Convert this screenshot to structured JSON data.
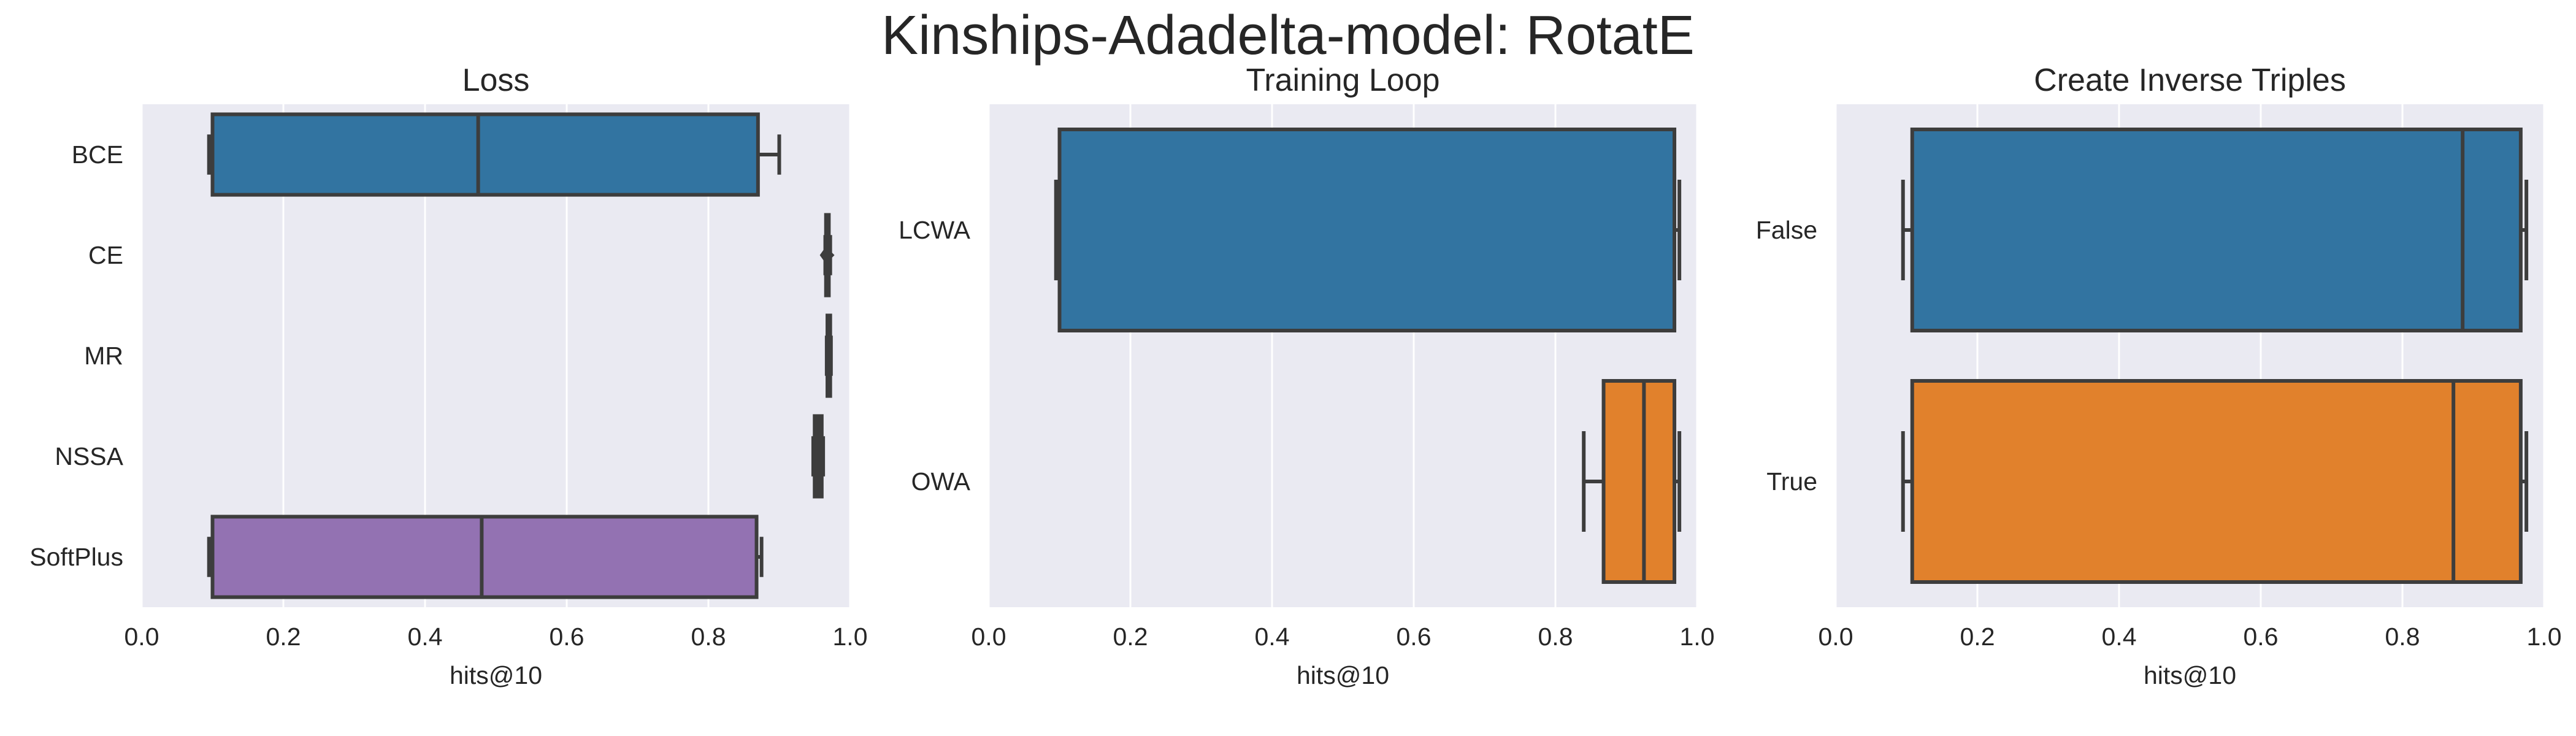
{
  "figure_title": "Kinships-Adadelta-model: RotatE",
  "colors": {
    "background": "#eaeaf2",
    "grid": "#ffffff",
    "edge": "#3d3d3d",
    "blue": "#3274a1",
    "orange": "#e1812c",
    "purple": "#9372b2"
  },
  "chart_data": [
    {
      "type": "box",
      "orientation": "horizontal",
      "title": "Loss",
      "xlabel": "hits@10",
      "xlim": [
        0.0,
        1.0
      ],
      "xticks": [
        "0.0",
        "0.2",
        "0.4",
        "0.6",
        "0.8",
        "1.0"
      ],
      "categories": [
        "BCE",
        "CE",
        "MR",
        "NSSA",
        "SoftPlus"
      ],
      "boxes": [
        {
          "min": 0.095,
          "q1": 0.1,
          "median": 0.475,
          "q3": 0.87,
          "max": 0.9,
          "color": "#3274a1",
          "outliers": []
        },
        {
          "min": 0.965,
          "q1": 0.966,
          "median": 0.968,
          "q3": 0.97,
          "max": 0.972,
          "color": "#e1812c",
          "outliers": [
            0.978
          ]
        },
        {
          "min": 0.967,
          "q1": 0.968,
          "median": 0.97,
          "q3": 0.972,
          "max": 0.973,
          "color": "#3a923a",
          "outliers": []
        },
        {
          "min": 0.948,
          "q1": 0.95,
          "median": 0.955,
          "q3": 0.96,
          "max": 0.962,
          "color": "#c03d3e",
          "outliers": []
        },
        {
          "min": 0.095,
          "q1": 0.1,
          "median": 0.48,
          "q3": 0.868,
          "max": 0.875,
          "color": "#9372b2",
          "outliers": []
        }
      ]
    },
    {
      "type": "box",
      "orientation": "horizontal",
      "title": "Training Loop",
      "xlabel": "hits@10",
      "xlim": [
        0.0,
        1.0
      ],
      "xticks": [
        "0.0",
        "0.2",
        "0.4",
        "0.6",
        "0.8",
        "1.0"
      ],
      "categories": [
        "LCWA",
        "OWA"
      ],
      "boxes": [
        {
          "min": 0.095,
          "q1": 0.1,
          "median": 0.1,
          "q3": 0.968,
          "max": 0.975,
          "color": "#3274a1",
          "outliers": []
        },
        {
          "min": 0.84,
          "q1": 0.868,
          "median": 0.925,
          "q3": 0.968,
          "max": 0.975,
          "color": "#e1812c",
          "outliers": []
        }
      ]
    },
    {
      "type": "box",
      "orientation": "horizontal",
      "title": "Create Inverse Triples",
      "xlabel": "hits@10",
      "xlim": [
        0.0,
        1.0
      ],
      "xticks": [
        "0.0",
        "0.2",
        "0.4",
        "0.6",
        "0.8",
        "1.0"
      ],
      "categories": [
        "False",
        "True"
      ],
      "boxes": [
        {
          "min": 0.095,
          "q1": 0.108,
          "median": 0.885,
          "q3": 0.967,
          "max": 0.975,
          "color": "#3274a1",
          "outliers": []
        },
        {
          "min": 0.095,
          "q1": 0.108,
          "median": 0.872,
          "q3": 0.967,
          "max": 0.975,
          "color": "#e1812c",
          "outliers": []
        }
      ]
    }
  ]
}
